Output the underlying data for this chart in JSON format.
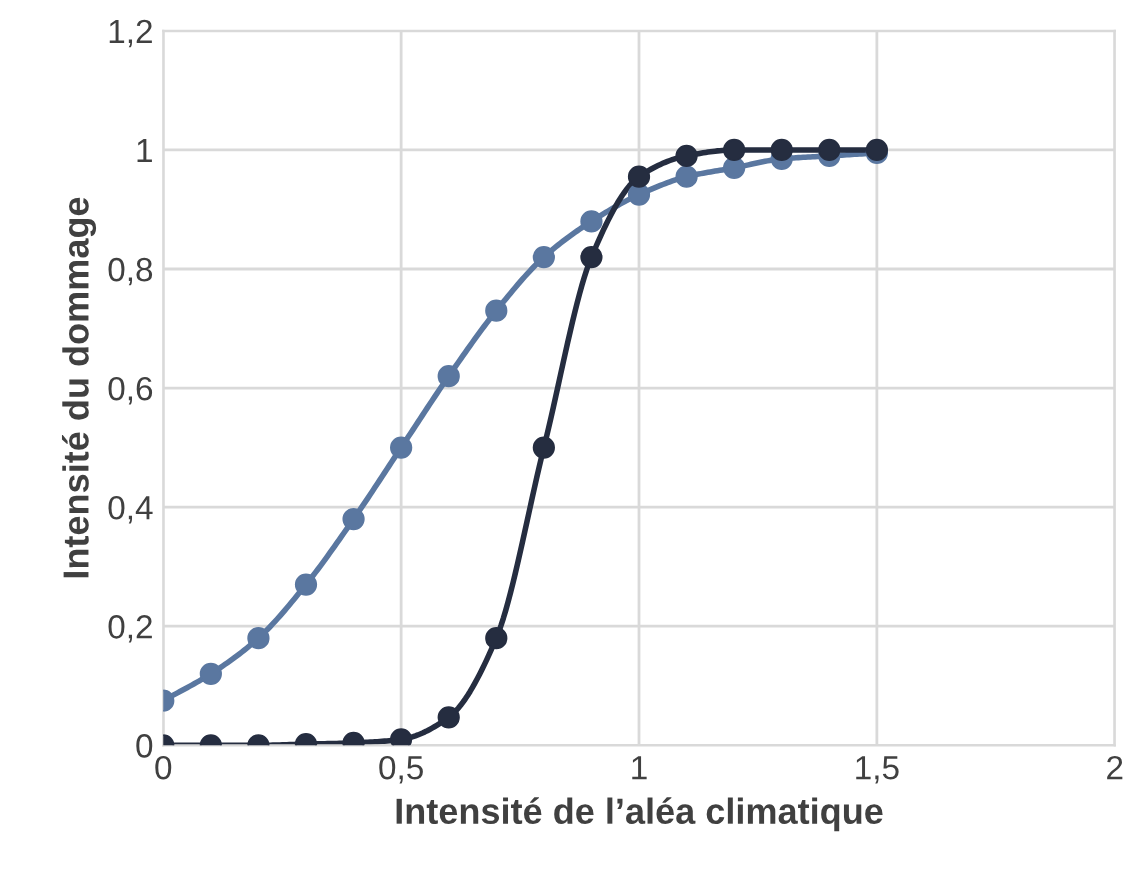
{
  "chart_data": {
    "type": "line",
    "xlabel": "Intensité de l’aléa climatique",
    "ylabel": "Intensité du dommage",
    "xlim": [
      0,
      2
    ],
    "xticks": [
      0,
      {
        "value": 0.5,
        "label": "0,5"
      },
      1,
      {
        "value": 1.5,
        "label": "1,5"
      },
      2
    ],
    "ylim": [
      0,
      1.2
    ],
    "yticks": [
      0,
      {
        "value": 0.2,
        "label": "0,2"
      },
      {
        "value": 0.4,
        "label": "0,4"
      },
      {
        "value": 0.6,
        "label": "0,6"
      },
      {
        "value": 0.8,
        "label": "0,8"
      },
      1,
      {
        "value": 1.2,
        "label": "1,2"
      }
    ],
    "grid": true,
    "marker": "circle",
    "line_style": "solid",
    "series": [
      {
        "color": "#5a77a0",
        "x": [
          0,
          0.1,
          0.2,
          0.3,
          0.4,
          0.5,
          0.6,
          0.7,
          0.8,
          0.9,
          1.0,
          1.1,
          1.2,
          1.3,
          1.4,
          1.5
        ],
        "values": [
          0.075,
          0.12,
          0.18,
          0.27,
          0.38,
          0.5,
          0.62,
          0.73,
          0.82,
          0.88,
          0.925,
          0.955,
          0.97,
          0.985,
          0.99,
          0.995
        ]
      },
      {
        "color": "#252d40",
        "x": [
          0,
          0.1,
          0.2,
          0.3,
          0.4,
          0.5,
          0.6,
          0.7,
          0.8,
          0.9,
          1.0,
          1.1,
          1.2,
          1.3,
          1.4,
          1.5
        ],
        "values": [
          0.0,
          0.0,
          0.0,
          0.002,
          0.004,
          0.01,
          0.047,
          0.18,
          0.5,
          0.82,
          0.955,
          0.99,
          1.0,
          1.0,
          1.0,
          1.0
        ]
      }
    ]
  }
}
